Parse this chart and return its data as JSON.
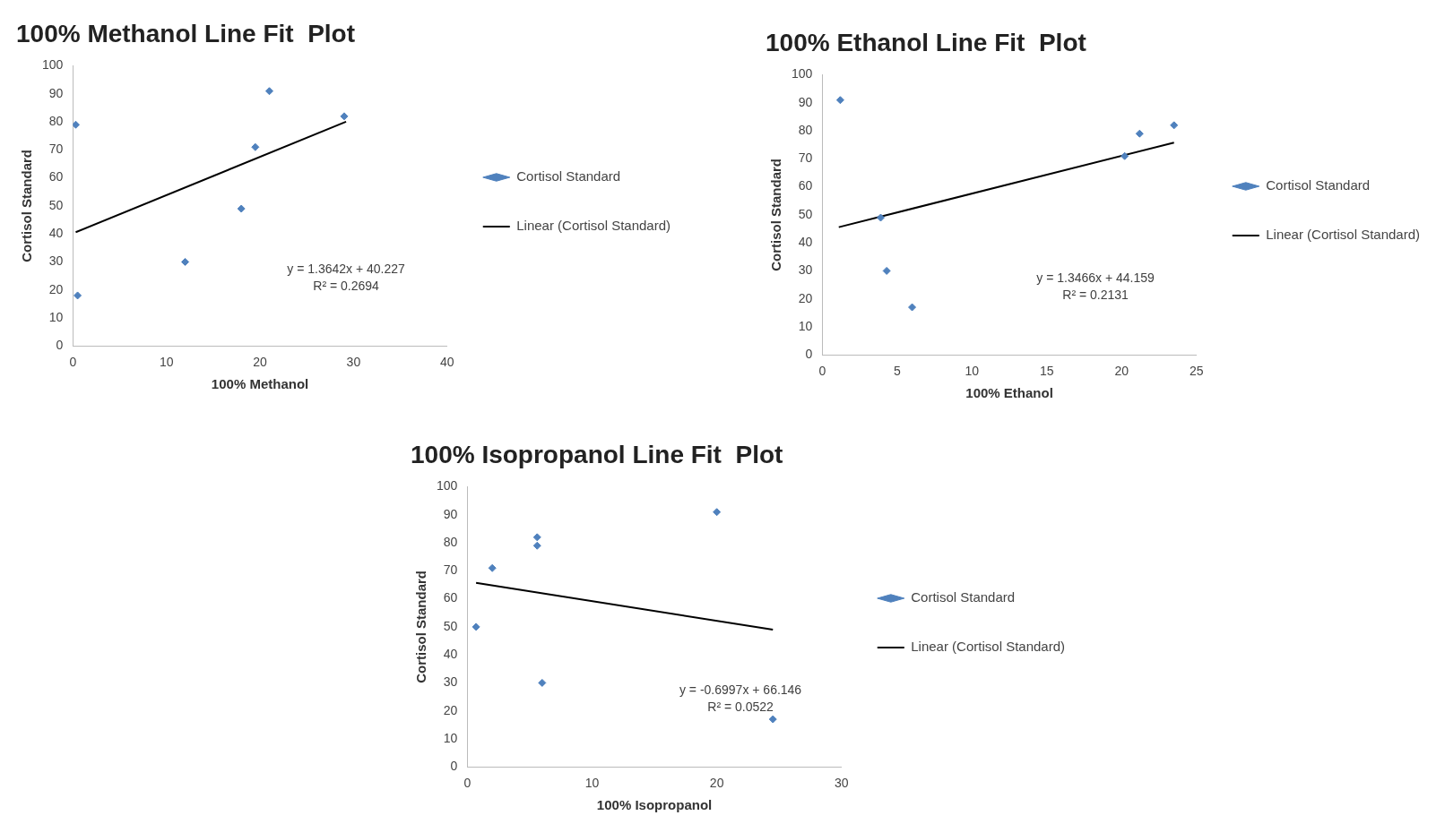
{
  "chart_data": [
    {
      "type": "scatter",
      "title": "100% Methanol Line Fit  Plot",
      "xlabel": "100% Methanol",
      "ylabel": "Cortisol Standard",
      "xlim": [
        0,
        40
      ],
      "xticks": [
        0,
        10,
        20,
        30,
        40
      ],
      "ylim": [
        0,
        100
      ],
      "yticks": [
        0,
        10,
        20,
        30,
        40,
        50,
        60,
        70,
        80,
        90,
        100
      ],
      "grid": false,
      "legend": "right",
      "marker": "diamond",
      "annotations": [
        "y = 1.3642x + 40.227",
        "R² = 0.2694"
      ],
      "series": [
        {
          "name": "Cortisol Standard",
          "color": "#4f81bd",
          "x": [
            0.3,
            0.5,
            12,
            18,
            19.5,
            21,
            29
          ],
          "values": [
            79,
            18,
            30,
            49,
            71,
            91,
            82
          ]
        },
        {
          "name": "Linear (Cortisol Standard)",
          "type": "line",
          "marker": "none",
          "color": "#000000",
          "x": [
            0.3,
            29.2
          ],
          "values": [
            40.6,
            80.1
          ]
        }
      ]
    },
    {
      "type": "scatter",
      "title": "100% Ethanol Line Fit  Plot",
      "xlabel": "100% Ethanol",
      "ylabel": "Cortisol Standard",
      "xlim": [
        0,
        25
      ],
      "xticks": [
        0,
        5,
        10,
        15,
        20,
        25
      ],
      "ylim": [
        0,
        100
      ],
      "yticks": [
        0,
        10,
        20,
        30,
        40,
        50,
        60,
        70,
        80,
        90,
        100
      ],
      "grid": false,
      "legend": "right",
      "marker": "diamond",
      "annotations": [
        "y = 1.3466x + 44.159",
        "R² = 0.2131"
      ],
      "series": [
        {
          "name": "Cortisol Standard",
          "color": "#4f81bd",
          "x": [
            1.2,
            3.9,
            4.3,
            6,
            20.2,
            21.2,
            23.5
          ],
          "values": [
            91,
            49,
            30,
            17,
            71,
            79,
            82
          ]
        },
        {
          "name": "Linear (Cortisol Standard)",
          "type": "line",
          "marker": "none",
          "color": "#000000",
          "x": [
            1.1,
            23.5
          ],
          "values": [
            45.6,
            75.8
          ]
        }
      ]
    },
    {
      "type": "scatter",
      "title": "100% Isopropanol Line Fit  Plot",
      "xlabel": "100% Isopropanol",
      "ylabel": "Cortisol Standard",
      "xlim": [
        0,
        30
      ],
      "xticks": [
        0,
        10,
        20,
        30
      ],
      "ylim": [
        0,
        100
      ],
      "yticks": [
        0,
        10,
        20,
        30,
        40,
        50,
        60,
        70,
        80,
        90,
        100
      ],
      "grid": false,
      "legend": "right",
      "marker": "diamond",
      "annotations": [
        "y = -0.6997x + 66.146",
        "R² = 0.0522"
      ],
      "series": [
        {
          "name": "Cortisol Standard",
          "color": "#4f81bd",
          "x": [
            0.7,
            2,
            5.6,
            5.6,
            6,
            20,
            24.5
          ],
          "values": [
            50,
            71,
            82,
            79,
            30,
            91,
            17
          ]
        },
        {
          "name": "Linear (Cortisol Standard)",
          "type": "line",
          "marker": "none",
          "color": "#000000",
          "x": [
            0.7,
            24.5
          ],
          "values": [
            65.7,
            49.0
          ]
        }
      ]
    }
  ]
}
